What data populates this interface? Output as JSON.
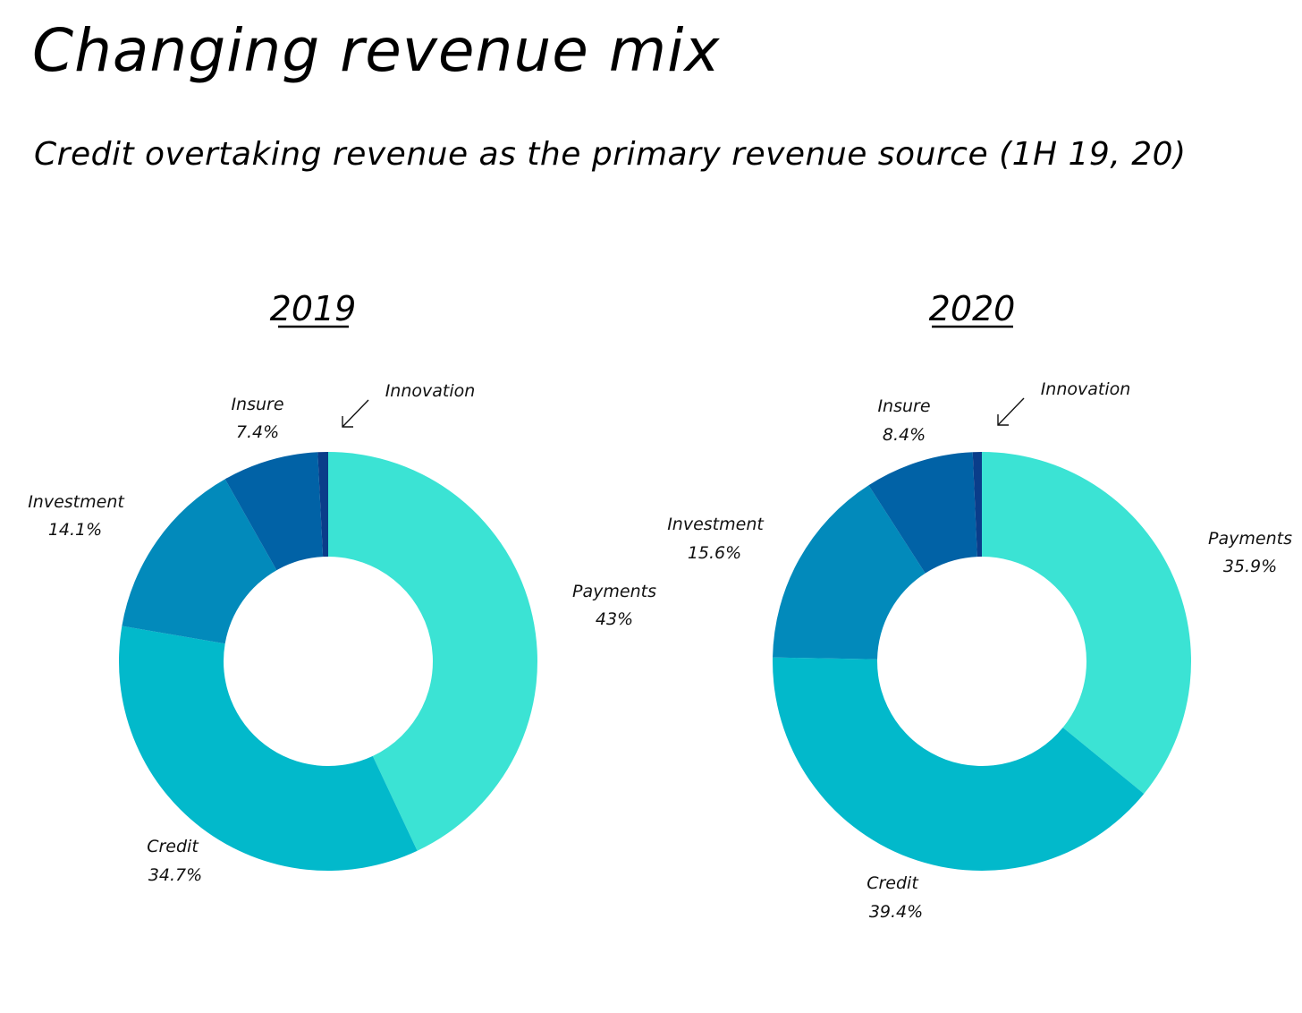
{
  "title": "Changing revenue mix",
  "subtitle": "Credit overtaking revenue as the primary revenue source (1H 19, 20)",
  "chart_data": [
    {
      "type": "pie",
      "title": "2019",
      "categories": [
        "Payments",
        "Credit",
        "Investment",
        "Insure",
        "Innovation"
      ],
      "values": [
        43,
        34.7,
        14.1,
        7.4,
        0.8
      ],
      "value_labels": [
        "43%",
        "34.7%",
        "14.1%",
        "7.4%",
        ""
      ],
      "colors": [
        "#3be3d4",
        "#02b9cb",
        "#028abb",
        "#0162a6",
        "#0a3d8a"
      ]
    },
    {
      "type": "pie",
      "title": "2020",
      "categories": [
        "Payments",
        "Credit",
        "Investment",
        "Insure",
        "Innovation"
      ],
      "values": [
        35.9,
        39.4,
        15.6,
        8.4,
        0.7
      ],
      "value_labels": [
        "35.9%",
        "39.4%",
        "15.6%",
        "8.4%",
        ""
      ],
      "colors": [
        "#3be3d4",
        "#02b9cb",
        "#028abb",
        "#0162a6",
        "#0a3d8a"
      ]
    }
  ]
}
